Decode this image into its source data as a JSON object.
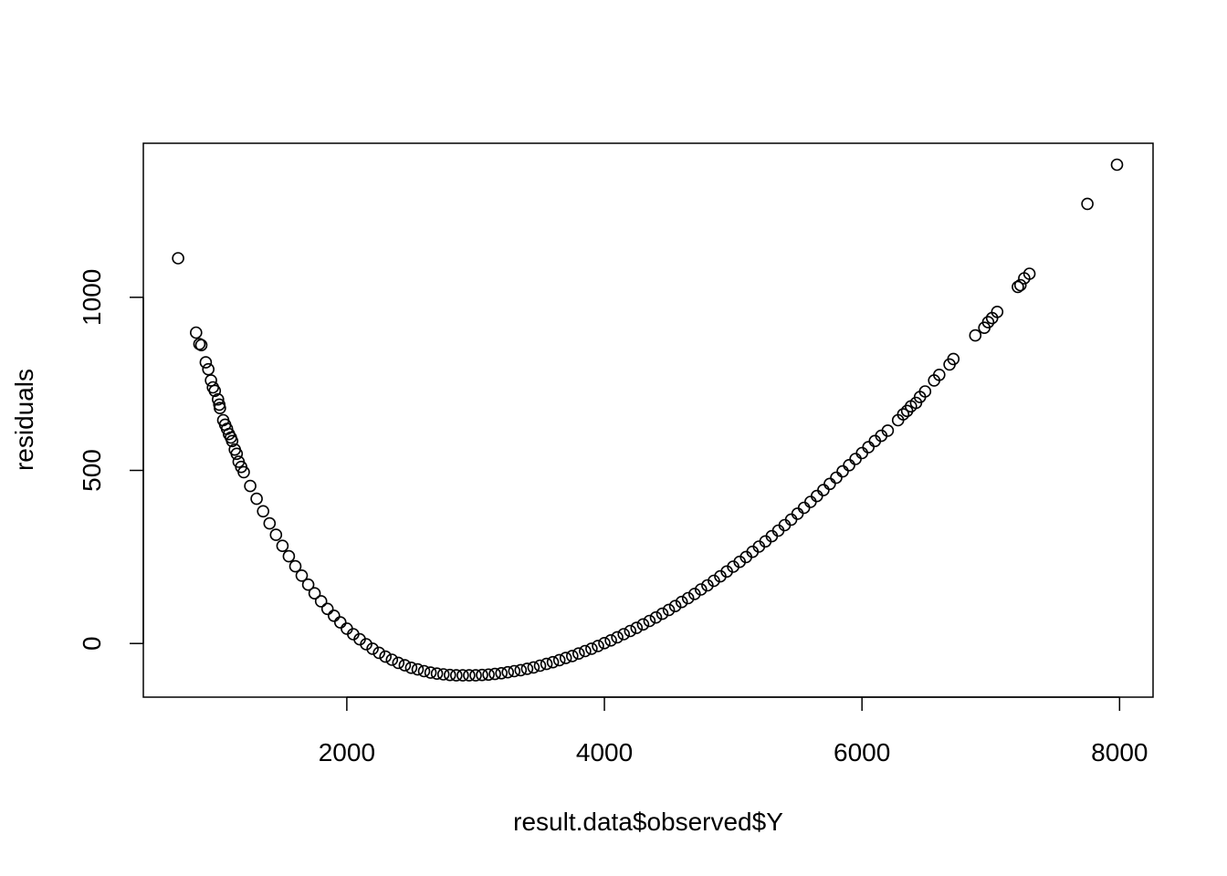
{
  "chart_data": {
    "type": "scatter",
    "title": "",
    "xlabel": "result.data$observed$Y",
    "ylabel": "residuals",
    "xlim": [
      420,
      8260
    ],
    "ylim": [
      -155,
      1445
    ],
    "x_ticks": [
      2000,
      4000,
      6000,
      8000
    ],
    "x_tick_labels": [
      "2000",
      "4000",
      "6000",
      "8000"
    ],
    "y_ticks": [
      0,
      500,
      1000
    ],
    "y_tick_labels": [
      "0",
      "500",
      "1000"
    ],
    "grid": false,
    "legend": "none",
    "marker": "open-circle",
    "marker_color": "#000000",
    "points": [
      [
        690,
        1113
      ],
      [
        830,
        898
      ],
      [
        855,
        865
      ],
      [
        870,
        862
      ],
      [
        905,
        812
      ],
      [
        925,
        792
      ],
      [
        945,
        760
      ],
      [
        960,
        740
      ],
      [
        975,
        730
      ],
      [
        1000,
        705
      ],
      [
        1010,
        690
      ],
      [
        1015,
        680
      ],
      [
        1040,
        645
      ],
      [
        1055,
        632
      ],
      [
        1070,
        620
      ],
      [
        1085,
        605
      ],
      [
        1100,
        595
      ],
      [
        1110,
        585
      ],
      [
        1130,
        560
      ],
      [
        1145,
        548
      ],
      [
        1160,
        525
      ],
      [
        1180,
        510
      ],
      [
        1200,
        495
      ],
      [
        1250,
        455
      ],
      [
        1300,
        418
      ],
      [
        1350,
        382
      ],
      [
        1400,
        347
      ],
      [
        1450,
        314
      ],
      [
        1500,
        282
      ],
      [
        1550,
        252
      ],
      [
        1600,
        223
      ],
      [
        1650,
        196
      ],
      [
        1700,
        170
      ],
      [
        1750,
        145
      ],
      [
        1800,
        122
      ],
      [
        1850,
        100
      ],
      [
        1900,
        80
      ],
      [
        1950,
        61
      ],
      [
        2000,
        43
      ],
      [
        2050,
        27
      ],
      [
        2100,
        12
      ],
      [
        2150,
        -2
      ],
      [
        2200,
        -15
      ],
      [
        2250,
        -27
      ],
      [
        2300,
        -38
      ],
      [
        2350,
        -47
      ],
      [
        2400,
        -56
      ],
      [
        2450,
        -63
      ],
      [
        2500,
        -70
      ],
      [
        2550,
        -75
      ],
      [
        2600,
        -80
      ],
      [
        2650,
        -84
      ],
      [
        2700,
        -87
      ],
      [
        2750,
        -89
      ],
      [
        2800,
        -91
      ],
      [
        2850,
        -92
      ],
      [
        2900,
        -92
      ],
      [
        2950,
        -92
      ],
      [
        3000,
        -92
      ],
      [
        3050,
        -91
      ],
      [
        3100,
        -90
      ],
      [
        3150,
        -88
      ],
      [
        3200,
        -86
      ],
      [
        3250,
        -83
      ],
      [
        3300,
        -80
      ],
      [
        3350,
        -77
      ],
      [
        3400,
        -73
      ],
      [
        3450,
        -69
      ],
      [
        3500,
        -64
      ],
      [
        3550,
        -59
      ],
      [
        3600,
        -54
      ],
      [
        3650,
        -48
      ],
      [
        3700,
        -42
      ],
      [
        3750,
        -36
      ],
      [
        3800,
        -29
      ],
      [
        3850,
        -22
      ],
      [
        3900,
        -15
      ],
      [
        3950,
        -7
      ],
      [
        4000,
        1
      ],
      [
        4050,
        9
      ],
      [
        4100,
        18
      ],
      [
        4150,
        27
      ],
      [
        4200,
        36
      ],
      [
        4250,
        45
      ],
      [
        4300,
        55
      ],
      [
        4350,
        65
      ],
      [
        4400,
        75
      ],
      [
        4450,
        86
      ],
      [
        4500,
        97
      ],
      [
        4550,
        108
      ],
      [
        4600,
        120
      ],
      [
        4650,
        131
      ],
      [
        4700,
        143
      ],
      [
        4750,
        156
      ],
      [
        4800,
        168
      ],
      [
        4850,
        181
      ],
      [
        4900,
        194
      ],
      [
        4950,
        208
      ],
      [
        5000,
        222
      ],
      [
        5050,
        236
      ],
      [
        5100,
        250
      ],
      [
        5150,
        265
      ],
      [
        5200,
        280
      ],
      [
        5250,
        295
      ],
      [
        5300,
        310
      ],
      [
        5350,
        326
      ],
      [
        5400,
        342
      ],
      [
        5450,
        358
      ],
      [
        5500,
        375
      ],
      [
        5550,
        392
      ],
      [
        5600,
        409
      ],
      [
        5650,
        426
      ],
      [
        5700,
        443
      ],
      [
        5750,
        461
      ],
      [
        5800,
        479
      ],
      [
        5850,
        497
      ],
      [
        5900,
        515
      ],
      [
        5950,
        533
      ],
      [
        6000,
        550
      ],
      [
        6050,
        567
      ],
      [
        6100,
        585
      ],
      [
        6150,
        600
      ],
      [
        6200,
        615
      ],
      [
        6280,
        645
      ],
      [
        6320,
        662
      ],
      [
        6350,
        672
      ],
      [
        6380,
        685
      ],
      [
        6420,
        695
      ],
      [
        6450,
        712
      ],
      [
        6490,
        728
      ],
      [
        6560,
        760
      ],
      [
        6600,
        776
      ],
      [
        6680,
        806
      ],
      [
        6710,
        822
      ],
      [
        6880,
        890
      ],
      [
        6950,
        912
      ],
      [
        6980,
        928
      ],
      [
        7010,
        940
      ],
      [
        7050,
        958
      ],
      [
        7210,
        1030
      ],
      [
        7230,
        1035
      ],
      [
        7260,
        1055
      ],
      [
        7300,
        1068
      ],
      [
        7750,
        1270
      ],
      [
        7980,
        1383
      ]
    ]
  }
}
